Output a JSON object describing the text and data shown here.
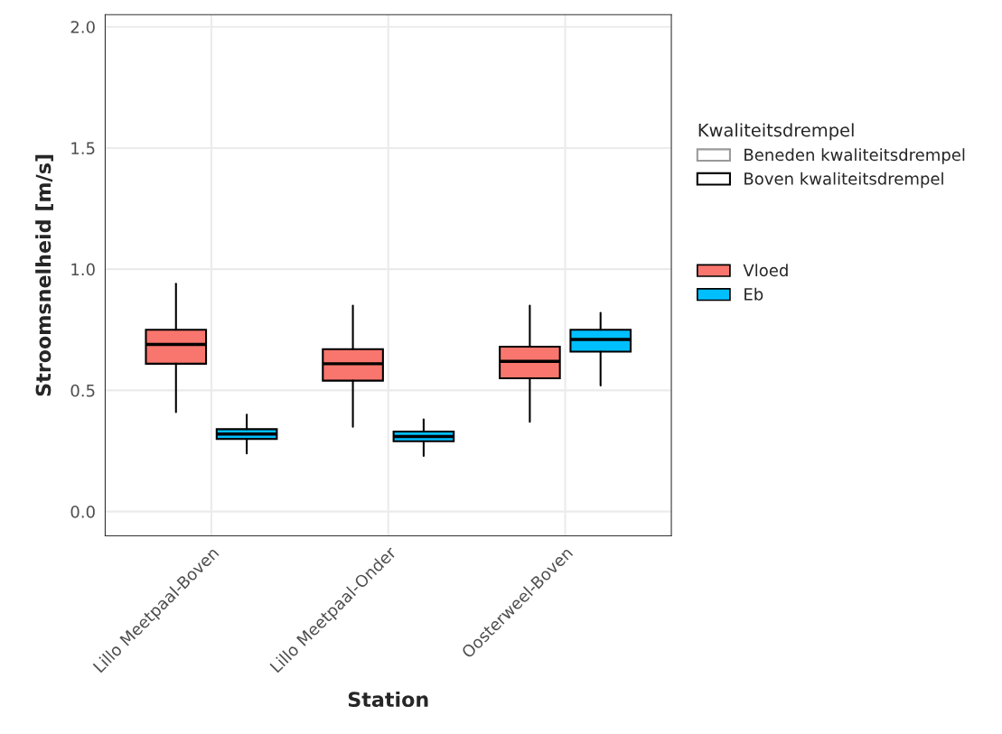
{
  "chart_data": {
    "type": "box",
    "xlabel": "Station",
    "ylabel": "Stroomsnelheid [m/s]",
    "legend_title": "Kwaliteitsdrempel",
    "categories": [
      "Lillo Meetpaal-Boven",
      "Lillo Meetpaal-Onder",
      "Oosterweel-Boven"
    ],
    "ylim": [
      -0.1,
      2.05
    ],
    "yticks": [
      {
        "value": 0,
        "label": "0.0"
      },
      {
        "value": 0.5,
        "label": "0.5"
      },
      {
        "value": 1,
        "label": "1.0"
      },
      {
        "value": 1.5,
        "label": "1.5"
      },
      {
        "value": 2,
        "label": "2.0"
      }
    ],
    "grid": true,
    "legend": "right",
    "series": [
      {
        "name": "Beneden kwaliteitsdrempel",
        "color": "#999999",
        "boxes": [
          null,
          null,
          null
        ]
      },
      {
        "name": "Boven kwaliteitsdrempel",
        "color": "#000000",
        "boxes": [
          null,
          null,
          null
        ]
      },
      {
        "name": "Vloed",
        "color": "#f8766d",
        "boxes": [
          {
            "low": 0.41,
            "q1": 0.61,
            "median": 0.69,
            "q3": 0.75,
            "high": 0.94
          },
          {
            "low": 0.35,
            "q1": 0.54,
            "median": 0.61,
            "q3": 0.67,
            "high": 0.85
          },
          {
            "low": 0.37,
            "q1": 0.55,
            "median": 0.62,
            "q3": 0.68,
            "high": 0.85
          }
        ]
      },
      {
        "name": "Eb",
        "color": "#00bfff",
        "boxes": [
          {
            "low": 0.24,
            "q1": 0.3,
            "median": 0.32,
            "q3": 0.34,
            "high": 0.4
          },
          {
            "low": 0.23,
            "q1": 0.29,
            "median": 0.31,
            "q3": 0.33,
            "high": 0.38
          },
          {
            "low": 0.52,
            "q1": 0.66,
            "median": 0.71,
            "q3": 0.75,
            "high": 0.82
          }
        ]
      }
    ]
  }
}
